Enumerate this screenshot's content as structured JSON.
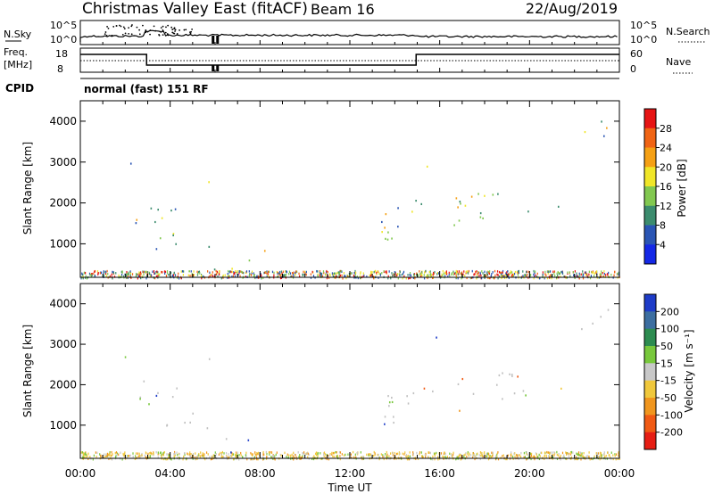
{
  "header": {
    "title": "Christmas Valley East (fitACF)",
    "beam": "Beam 16",
    "date": "22/Aug/2019"
  },
  "noise_panel": {
    "left_label": "N.Sky",
    "right_label": "N.Search",
    "left_ticks": [
      "10^5",
      "10^0"
    ],
    "right_ticks": [
      "10^5",
      "10^0"
    ]
  },
  "freq_panel": {
    "left_label_1": "Freq.",
    "left_label_2": "[MHz]",
    "right_label": "Nave",
    "left_ticks": [
      "18",
      "8"
    ],
    "right_ticks": [
      "60",
      "0"
    ]
  },
  "cpid": {
    "label": "CPID",
    "value": "normal (fast) 151 RF"
  },
  "time_axis": {
    "label": "Time UT",
    "ticks": [
      "00:00",
      "04:00",
      "08:00",
      "12:00",
      "16:00",
      "20:00",
      "00:00"
    ]
  },
  "colors": {
    "power_scale": [
      "#1428e6",
      "#2a55b4",
      "#3c8c6e",
      "#82c850",
      "#f0e628",
      "#f5a014",
      "#f06414",
      "#e61414"
    ],
    "velocity_scale": [
      "#1e3cc8",
      "#3c6ea0",
      "#2d8c50",
      "#78c83c",
      "#c8c8c8",
      "#f0c83c",
      "#f0961e",
      "#f05a14",
      "#e61e14"
    ],
    "ground_scatter": "#c0c0c0"
  },
  "chart_data": [
    {
      "type": "heatmap",
      "name": "power-panel",
      "ylabel": "Slant Range [km]",
      "yticks": [
        "1000",
        "2000",
        "3000",
        "4000"
      ],
      "ylim": [
        180,
        4500
      ],
      "xlim_hours": [
        0,
        24
      ],
      "colorbar_label": "Power [dB]",
      "colorbar_ticks": [
        "4",
        "8",
        "12",
        "16",
        "20",
        "24",
        "28"
      ],
      "color_range": [
        0,
        32
      ]
    },
    {
      "type": "heatmap",
      "name": "velocity-panel",
      "ylabel": "Slant Range [km]",
      "yticks": [
        "1000",
        "2000",
        "3000",
        "4000"
      ],
      "ylim": [
        180,
        4500
      ],
      "xlim_hours": [
        0,
        24
      ],
      "colorbar_label": "Velocity [m s⁻¹]",
      "colorbar_ticks": [
        "200",
        "100",
        "50",
        "15",
        "-15",
        "-50",
        "-100",
        "-200"
      ]
    }
  ]
}
